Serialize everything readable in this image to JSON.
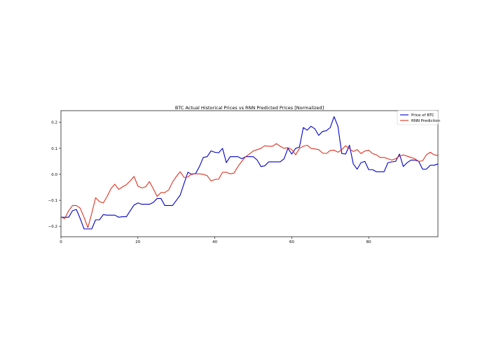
{
  "chart_data": {
    "type": "line",
    "title": "BTC Actual Historical Prices vs RNN Predicted Prices [Normalized]",
    "xlabel": "",
    "ylabel": "",
    "xlim": [
      0,
      98
    ],
    "ylim": [
      -0.24,
      0.245
    ],
    "x_ticks": [
      0,
      20,
      40,
      60,
      80
    ],
    "y_ticks": [
      -0.2,
      -0.1,
      0.0,
      0.1,
      0.2
    ],
    "x_tick_labels": [
      "0",
      "20",
      "40",
      "60",
      "80"
    ],
    "y_tick_labels": [
      "−0.2",
      "−0.1",
      "0.0",
      "0.1",
      "0.2"
    ],
    "grid": false,
    "legend_position": "top-right",
    "series": [
      {
        "name": "Price of BTC",
        "color": "#0000cc",
        "values": [
          -0.165,
          -0.165,
          -0.165,
          -0.14,
          -0.135,
          -0.17,
          -0.21,
          -0.21,
          -0.21,
          -0.175,
          -0.175,
          -0.155,
          -0.157,
          -0.157,
          -0.157,
          -0.165,
          -0.163,
          -0.163,
          -0.14,
          -0.118,
          -0.11,
          -0.115,
          -0.115,
          -0.115,
          -0.108,
          -0.093,
          -0.093,
          -0.12,
          -0.12,
          -0.12,
          -0.1,
          -0.08,
          -0.035,
          0.008,
          0.0,
          0.003,
          0.03,
          0.065,
          0.068,
          0.09,
          0.085,
          0.083,
          0.1,
          0.045,
          0.068,
          0.068,
          0.068,
          0.06,
          0.068,
          0.068,
          0.068,
          0.055,
          0.03,
          0.033,
          0.048,
          0.048,
          0.048,
          0.048,
          0.06,
          0.1,
          0.078,
          0.1,
          0.105,
          0.18,
          0.17,
          0.185,
          0.175,
          0.15,
          0.165,
          0.168,
          0.18,
          0.222,
          0.185,
          0.08,
          0.078,
          0.112,
          0.04,
          0.02,
          0.045,
          0.05,
          0.018,
          0.018,
          0.01,
          0.01,
          0.01,
          0.045,
          0.048,
          0.05,
          0.078,
          0.03,
          0.045,
          0.055,
          0.055,
          0.05,
          0.02,
          0.02,
          0.035,
          0.035,
          0.04
        ]
      },
      {
        "name": "RNN Prediction",
        "color": "#dd3322",
        "values": [
          -0.165,
          -0.17,
          -0.14,
          -0.12,
          -0.12,
          -0.13,
          -0.165,
          -0.205,
          -0.15,
          -0.09,
          -0.105,
          -0.11,
          -0.085,
          -0.055,
          -0.038,
          -0.058,
          -0.048,
          -0.04,
          -0.025,
          -0.008,
          -0.045,
          -0.052,
          -0.048,
          -0.028,
          -0.055,
          -0.085,
          -0.07,
          -0.07,
          -0.06,
          -0.03,
          -0.008,
          0.01,
          -0.012,
          -0.01,
          0.002,
          0.002,
          0.002,
          0.0,
          -0.005,
          -0.025,
          -0.02,
          -0.018,
          0.008,
          0.008,
          0.002,
          0.005,
          0.03,
          0.05,
          0.068,
          0.078,
          0.09,
          0.095,
          0.1,
          0.11,
          0.108,
          0.108,
          0.118,
          0.108,
          0.1,
          0.103,
          0.095,
          0.075,
          0.1,
          0.108,
          0.112,
          0.1,
          0.098,
          0.095,
          0.082,
          0.08,
          0.092,
          0.093,
          0.085,
          0.095,
          0.11,
          0.098,
          0.088,
          0.095,
          0.08,
          0.09,
          0.093,
          0.08,
          0.075,
          0.065,
          0.065,
          0.06,
          0.055,
          0.06,
          0.07,
          0.075,
          0.07,
          0.065,
          0.06,
          0.05,
          0.052,
          0.075,
          0.085,
          0.075,
          0.073
        ]
      }
    ]
  }
}
